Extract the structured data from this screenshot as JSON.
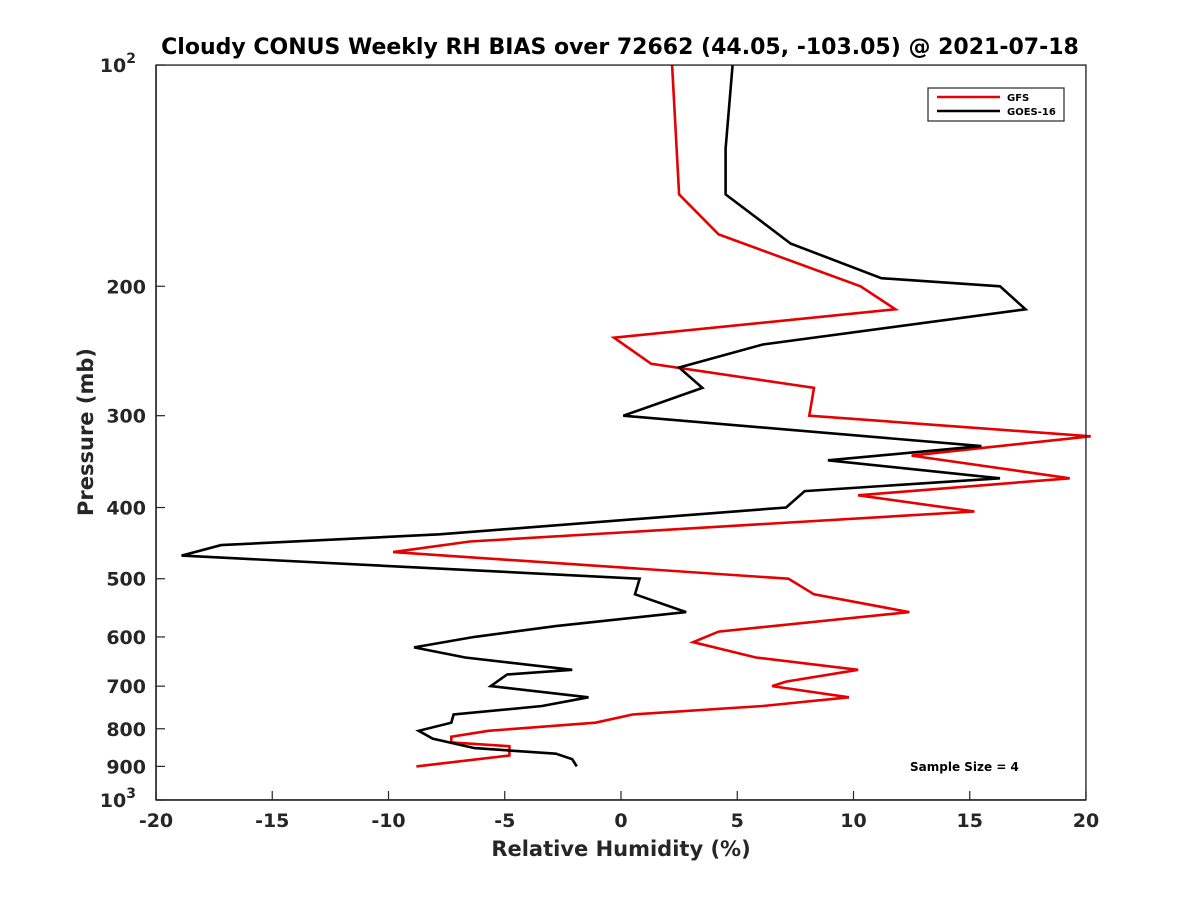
{
  "chart_data": {
    "type": "line",
    "title": "Cloudy CONUS Weekly RH BIAS over 72662 (44.05, -103.05) @ 2021-07-18",
    "xlabel": "Relative Humidity (%)",
    "ylabel": "Pressure (mb)",
    "xlim": [
      -20,
      20
    ],
    "ylim": [
      100,
      1000
    ],
    "y_scale": "log",
    "y_reversed": true,
    "grid": false,
    "legend_position": "top-right",
    "x_ticks": [
      {
        "value": -20,
        "label": "-20"
      },
      {
        "value": -15,
        "label": "-15"
      },
      {
        "value": -10,
        "label": "-10"
      },
      {
        "value": -5,
        "label": "-5"
      },
      {
        "value": 0,
        "label": "0"
      },
      {
        "value": 5,
        "label": "5"
      },
      {
        "value": 10,
        "label": "10"
      },
      {
        "value": 15,
        "label": "15"
      },
      {
        "value": 20,
        "label": "20"
      }
    ],
    "y_ticks": [
      {
        "value": 100,
        "base": "10",
        "exp": "2"
      },
      {
        "value": 200,
        "label": "200"
      },
      {
        "value": 300,
        "label": "300"
      },
      {
        "value": 400,
        "label": "400"
      },
      {
        "value": 500,
        "label": "500"
      },
      {
        "value": 600,
        "label": "600"
      },
      {
        "value": 700,
        "label": "700"
      },
      {
        "value": 800,
        "label": "800"
      },
      {
        "value": 900,
        "label": "900"
      },
      {
        "value": 1000,
        "base": "10",
        "exp": "3"
      }
    ],
    "annotation": "Sample Size = 4",
    "series": [
      {
        "name": "GFS",
        "color": "#e60000",
        "points": [
          [
            2.2,
            100
          ],
          [
            2.5,
            150
          ],
          [
            4.2,
            170
          ],
          [
            10.3,
            200
          ],
          [
            11.8,
            215
          ],
          [
            -0.3,
            235
          ],
          [
            1.3,
            255
          ],
          [
            8.3,
            275
          ],
          [
            8.1,
            300
          ],
          [
            20.2,
            320
          ],
          [
            12.5,
            340
          ],
          [
            19.3,
            365
          ],
          [
            10.2,
            385
          ],
          [
            15.2,
            405
          ],
          [
            -6.5,
            445
          ],
          [
            -9.8,
            460
          ],
          [
            7.2,
            500
          ],
          [
            8.3,
            525
          ],
          [
            12.4,
            555
          ],
          [
            4.2,
            590
          ],
          [
            3.1,
            610
          ],
          [
            5.8,
            640
          ],
          [
            10.2,
            665
          ],
          [
            7.1,
            690
          ],
          [
            6.5,
            700
          ],
          [
            9.8,
            725
          ],
          [
            6.1,
            745
          ],
          [
            0.5,
            765
          ],
          [
            -1.1,
            785
          ],
          [
            -5.7,
            805
          ],
          [
            -7.3,
            820
          ],
          [
            -7.3,
            835
          ],
          [
            -4.8,
            845
          ],
          [
            -4.8,
            870
          ],
          [
            -8.8,
            900
          ]
        ]
      },
      {
        "name": "GOES-16",
        "color": "#000000",
        "points": [
          [
            4.8,
            100
          ],
          [
            4.5,
            130
          ],
          [
            4.5,
            150
          ],
          [
            7.3,
            175
          ],
          [
            11.2,
            195
          ],
          [
            16.3,
            200
          ],
          [
            17.4,
            215
          ],
          [
            6.1,
            240
          ],
          [
            2.5,
            258
          ],
          [
            3.5,
            275
          ],
          [
            0.1,
            300
          ],
          [
            15.5,
            330
          ],
          [
            8.9,
            345
          ],
          [
            16.3,
            365
          ],
          [
            7.9,
            380
          ],
          [
            7.1,
            400
          ],
          [
            -7.8,
            435
          ],
          [
            -17.2,
            450
          ],
          [
            -18.9,
            465
          ],
          [
            0.8,
            500
          ],
          [
            0.6,
            525
          ],
          [
            2.8,
            555
          ],
          [
            -2.8,
            580
          ],
          [
            -6.3,
            600
          ],
          [
            -8.9,
            620
          ],
          [
            -6.7,
            640
          ],
          [
            -2.1,
            665
          ],
          [
            -4.9,
            675
          ],
          [
            -5.6,
            700
          ],
          [
            -1.4,
            725
          ],
          [
            -3.4,
            745
          ],
          [
            -7.2,
            765
          ],
          [
            -7.3,
            785
          ],
          [
            -8.7,
            805
          ],
          [
            -8.1,
            825
          ],
          [
            -6.3,
            850
          ],
          [
            -2.8,
            865
          ],
          [
            -2.1,
            880
          ],
          [
            -1.9,
            900
          ]
        ]
      }
    ]
  }
}
